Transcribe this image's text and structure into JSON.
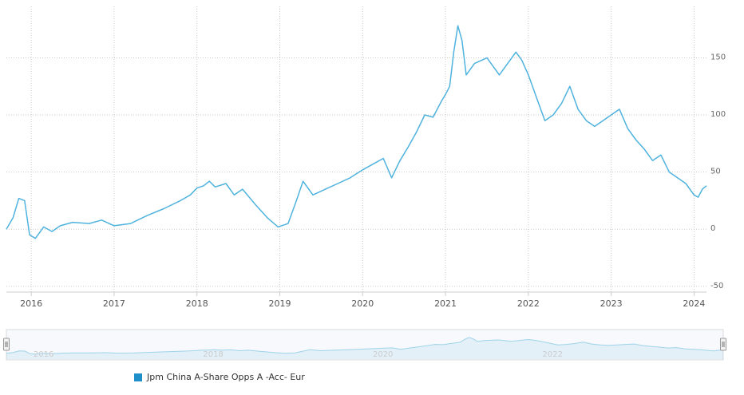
{
  "chart_data": {
    "type": "line",
    "x_ticks": [
      "2016",
      "2017",
      "2018",
      "2019",
      "2020",
      "2021",
      "2022",
      "2023",
      "2024"
    ],
    "y_ticks": [
      150,
      100,
      50,
      0,
      -50
    ],
    "ylim": [
      -55,
      195
    ],
    "xlim": [
      2015.7,
      2024.15
    ],
    "grid": "dotted",
    "series": [
      {
        "name": "Jpm China A-Share Opps A -Acc- Eur",
        "color": "#4fb3de",
        "x": [
          2015.7,
          2015.78,
          2015.85,
          2015.92,
          2015.98,
          2016.05,
          2016.15,
          2016.25,
          2016.35,
          2016.5,
          2016.7,
          2016.85,
          2017.0,
          2017.2,
          2017.4,
          2017.6,
          2017.8,
          2017.92,
          2018.0,
          2018.08,
          2018.15,
          2018.22,
          2018.35,
          2018.45,
          2018.55,
          2018.7,
          2018.85,
          2018.98,
          2019.1,
          2019.2,
          2019.28,
          2019.4,
          2019.55,
          2019.7,
          2019.85,
          2020.0,
          2020.15,
          2020.25,
          2020.35,
          2020.45,
          2020.55,
          2020.65,
          2020.75,
          2020.85,
          2020.95,
          2021.0,
          2021.05,
          2021.1,
          2021.15,
          2021.2,
          2021.25,
          2021.35,
          2021.5,
          2021.65,
          2021.75,
          2021.85,
          2021.92,
          2022.0,
          2022.1,
          2022.2,
          2022.3,
          2022.4,
          2022.5,
          2022.6,
          2022.7,
          2022.8,
          2022.9,
          2023.0,
          2023.1,
          2023.2,
          2023.3,
          2023.4,
          2023.5,
          2023.6,
          2023.7,
          2023.8,
          2023.9,
          2024.0,
          2024.05,
          2024.1,
          2024.15
        ],
        "y": [
          0,
          10,
          27,
          25,
          -5,
          -8,
          2,
          -2,
          3,
          6,
          5,
          8,
          3,
          5,
          12,
          18,
          25,
          30,
          36,
          38,
          42,
          37,
          40,
          30,
          35,
          22,
          10,
          2,
          5,
          25,
          42,
          30,
          35,
          40,
          45,
          52,
          58,
          62,
          45,
          60,
          72,
          85,
          100,
          98,
          112,
          118,
          125,
          155,
          178,
          165,
          135,
          145,
          150,
          135,
          145,
          155,
          148,
          135,
          115,
          95,
          100,
          110,
          125,
          105,
          95,
          90,
          95,
          100,
          105,
          88,
          78,
          70,
          60,
          65,
          50,
          45,
          40,
          30,
          28,
          35,
          38
        ]
      }
    ],
    "navigator_labels": [
      "2016",
      "2018",
      "2020",
      "2022"
    ],
    "legend": "bottom-left"
  },
  "legend": {
    "label": "Jpm China A-Share Opps A -Acc- Eur",
    "color": "#1f8fc9"
  }
}
